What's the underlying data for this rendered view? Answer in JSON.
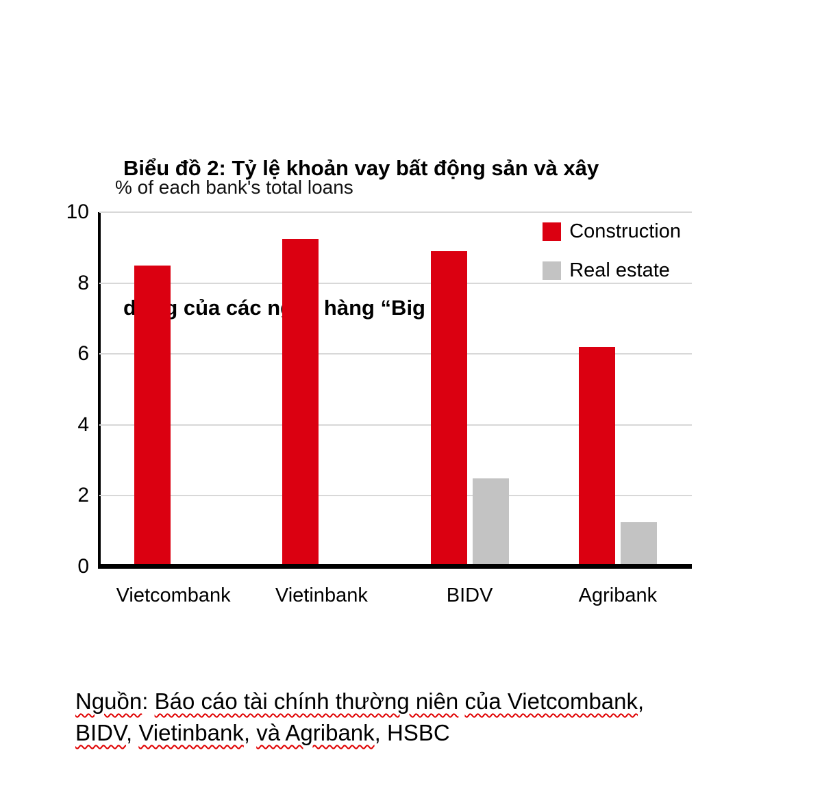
{
  "title": {
    "line1": "Biểu đồ 2: Tỷ lệ khoản vay bất động sản và xây",
    "line2": "dựng của các ngân hàng “Big 4”"
  },
  "chart_data": {
    "type": "bar",
    "axis_title": "% of each bank's total loans",
    "categories": [
      "Vietcombank",
      "Vietinbank",
      "BIDV",
      "Agribank"
    ],
    "series": [
      {
        "name": "Construction",
        "color": "#db0011",
        "values": [
          8.5,
          9.25,
          8.9,
          6.2
        ]
      },
      {
        "name": "Real estate",
        "color": "#c3c3c3",
        "values": [
          0,
          0,
          2.5,
          1.25
        ]
      }
    ],
    "ylim": [
      0,
      10
    ],
    "yticks": [
      0,
      2,
      4,
      6,
      8,
      10
    ],
    "grid": true,
    "legend_position": "top-right"
  },
  "source": {
    "lines": [
      [
        {
          "text": "Nguồn",
          "underline": true
        },
        {
          "text": ": ",
          "underline": false
        },
        {
          "text": "Báo cáo tài chính thường niên",
          "underline": true
        },
        {
          "text": " ",
          "underline": false
        },
        {
          "text": "của Vietcombank",
          "underline": true
        },
        {
          "text": ",",
          "underline": false
        }
      ],
      [
        {
          "text": "BIDV",
          "underline": true
        },
        {
          "text": ", ",
          "underline": false
        },
        {
          "text": "Vietinbank",
          "underline": true
        },
        {
          "text": ", ",
          "underline": false
        },
        {
          "text": "và Agribank",
          "underline": true
        },
        {
          "text": ", HSBC",
          "underline": false
        }
      ]
    ]
  }
}
